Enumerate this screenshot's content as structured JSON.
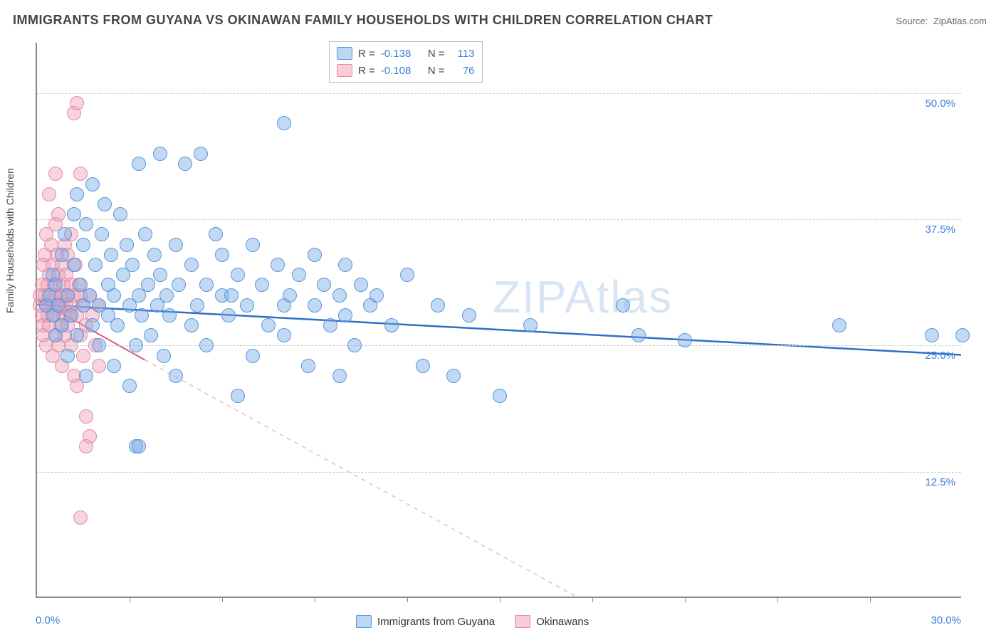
{
  "title": "IMMIGRANTS FROM GUYANA VS OKINAWAN FAMILY HOUSEHOLDS WITH CHILDREN CORRELATION CHART",
  "source_label": "Source:",
  "source_value": "ZipAtlas.com",
  "ylabel": "Family Households with Children",
  "xlim": [
    0,
    30
  ],
  "ylim": [
    0,
    55
  ],
  "x_min_label": "0.0%",
  "x_max_label": "30.0%",
  "y_ticks": [
    {
      "v": 12.5,
      "label": "12.5%"
    },
    {
      "v": 25.0,
      "label": "25.0%"
    },
    {
      "v": 37.5,
      "label": "37.5%"
    },
    {
      "v": 50.0,
      "label": "50.0%"
    }
  ],
  "x_tick_positions": [
    3,
    6,
    9,
    12,
    15,
    18,
    21,
    24,
    27
  ],
  "tick_label_color": "#3b7dd8",
  "grid_color": "#cccccc",
  "axis_color": "#888888",
  "background_color": "#ffffff",
  "watermark": "ZIPAtlas",
  "watermark_color": "rgba(120,160,210,0.25)",
  "legend_top": {
    "rows": [
      {
        "swatch_fill": "#bcd6f3",
        "swatch_border": "#5a95db",
        "r_label": "R =",
        "r_value": "-0.138",
        "n_label": "N =",
        "n_value": "113",
        "value_color": "#3b7dd8"
      },
      {
        "swatch_fill": "#f8cdd8",
        "swatch_border": "#e38ba2",
        "r_label": "R =",
        "r_value": "-0.108",
        "n_label": "N =",
        "n_value": "76",
        "value_color": "#3b7dd8"
      }
    ]
  },
  "legend_bottom": [
    {
      "swatch_fill": "#bcd6f3",
      "swatch_border": "#5a95db",
      "label": "Immigrants from Guyana"
    },
    {
      "swatch_fill": "#f8cdd8",
      "swatch_border": "#e38ba2",
      "label": "Okinawans"
    }
  ],
  "series_blue": {
    "marker_fill": "rgba(120,170,230,0.45)",
    "marker_stroke": "#5a95db",
    "marker_radius": 10,
    "trend": {
      "x1": 0,
      "y1": 29.0,
      "x2": 30,
      "y2": 24.0,
      "color": "#2f6fc7",
      "width": 2.5,
      "dash": "none"
    },
    "points": [
      [
        0.3,
        29
      ],
      [
        0.4,
        30
      ],
      [
        0.5,
        28
      ],
      [
        0.5,
        32
      ],
      [
        0.6,
        26
      ],
      [
        0.6,
        31
      ],
      [
        0.7,
        29
      ],
      [
        0.8,
        34
      ],
      [
        0.8,
        27
      ],
      [
        0.9,
        36
      ],
      [
        1.0,
        30
      ],
      [
        1.0,
        24
      ],
      [
        1.1,
        28
      ],
      [
        1.2,
        33
      ],
      [
        1.2,
        38
      ],
      [
        1.3,
        26
      ],
      [
        1.3,
        40
      ],
      [
        1.4,
        31
      ],
      [
        1.5,
        29
      ],
      [
        1.5,
        35
      ],
      [
        1.6,
        22
      ],
      [
        1.6,
        37
      ],
      [
        1.7,
        30
      ],
      [
        1.8,
        27
      ],
      [
        1.8,
        41
      ],
      [
        1.9,
        33
      ],
      [
        2.0,
        29
      ],
      [
        2.0,
        25
      ],
      [
        2.1,
        36
      ],
      [
        2.2,
        39
      ],
      [
        2.3,
        28
      ],
      [
        2.3,
        31
      ],
      [
        2.4,
        34
      ],
      [
        2.5,
        23
      ],
      [
        2.5,
        30
      ],
      [
        2.6,
        27
      ],
      [
        2.7,
        38
      ],
      [
        2.8,
        32
      ],
      [
        2.9,
        35
      ],
      [
        3.0,
        29
      ],
      [
        3.0,
        21
      ],
      [
        3.1,
        33
      ],
      [
        3.2,
        25
      ],
      [
        3.3,
        43
      ],
      [
        3.3,
        30
      ],
      [
        3.4,
        28
      ],
      [
        3.5,
        36
      ],
      [
        3.6,
        31
      ],
      [
        3.7,
        26
      ],
      [
        3.8,
        34
      ],
      [
        3.9,
        29
      ],
      [
        4.0,
        32
      ],
      [
        4.0,
        44
      ],
      [
        4.1,
        24
      ],
      [
        4.2,
        30
      ],
      [
        4.3,
        28
      ],
      [
        4.5,
        35
      ],
      [
        4.5,
        22
      ],
      [
        4.6,
        31
      ],
      [
        4.8,
        43
      ],
      [
        5.0,
        33
      ],
      [
        5.0,
        27
      ],
      [
        5.2,
        29
      ],
      [
        5.3,
        44
      ],
      [
        5.5,
        31
      ],
      [
        5.5,
        25
      ],
      [
        5.8,
        36
      ],
      [
        6.0,
        30
      ],
      [
        6.0,
        34
      ],
      [
        6.2,
        28
      ],
      [
        6.3,
        30
      ],
      [
        6.5,
        20
      ],
      [
        6.5,
        32
      ],
      [
        6.8,
        29
      ],
      [
        7.0,
        24
      ],
      [
        7.0,
        35
      ],
      [
        7.3,
        31
      ],
      [
        7.5,
        27
      ],
      [
        7.8,
        33
      ],
      [
        8.0,
        29
      ],
      [
        8.0,
        26
      ],
      [
        8.0,
        47
      ],
      [
        8.2,
        30
      ],
      [
        8.5,
        32
      ],
      [
        8.8,
        23
      ],
      [
        9.0,
        34
      ],
      [
        9.0,
        29
      ],
      [
        9.3,
        31
      ],
      [
        9.5,
        27
      ],
      [
        9.8,
        30
      ],
      [
        9.8,
        22
      ],
      [
        10.0,
        33
      ],
      [
        10.0,
        28
      ],
      [
        10.3,
        25
      ],
      [
        10.5,
        31
      ],
      [
        10.8,
        29
      ],
      [
        11.0,
        30
      ],
      [
        11.5,
        27
      ],
      [
        12.0,
        32
      ],
      [
        12.5,
        23
      ],
      [
        13.0,
        29
      ],
      [
        13.5,
        22
      ],
      [
        14.0,
        28
      ],
      [
        15.0,
        20
      ],
      [
        16.0,
        27
      ],
      [
        19.0,
        29
      ],
      [
        19.5,
        26
      ],
      [
        21.0,
        25.5
      ],
      [
        26.0,
        27
      ],
      [
        29.0,
        26
      ],
      [
        30.0,
        26
      ],
      [
        3.2,
        15
      ],
      [
        3.3,
        15
      ]
    ]
  },
  "series_pink": {
    "marker_fill": "rgba(240,160,185,0.45)",
    "marker_stroke": "#e38ba2",
    "marker_radius": 10,
    "trend_solid": {
      "x1": 0,
      "y1": 29.5,
      "x2": 3.5,
      "y2": 23.5,
      "color": "#d85a7c",
      "width": 2,
      "dash": "none"
    },
    "trend_dash": {
      "x1": 3.5,
      "y1": 23.5,
      "x2": 17.5,
      "y2": 0,
      "color": "#f2b8c6",
      "width": 1.5,
      "dash": "6,6"
    },
    "points": [
      [
        0.1,
        29
      ],
      [
        0.1,
        30
      ],
      [
        0.15,
        28
      ],
      [
        0.15,
        31
      ],
      [
        0.2,
        27
      ],
      [
        0.2,
        33
      ],
      [
        0.2,
        26
      ],
      [
        0.25,
        30
      ],
      [
        0.25,
        34
      ],
      [
        0.3,
        29
      ],
      [
        0.3,
        25
      ],
      [
        0.3,
        36
      ],
      [
        0.35,
        31
      ],
      [
        0.35,
        28
      ],
      [
        0.4,
        32
      ],
      [
        0.4,
        27
      ],
      [
        0.4,
        40
      ],
      [
        0.45,
        30
      ],
      [
        0.45,
        35
      ],
      [
        0.5,
        29
      ],
      [
        0.5,
        24
      ],
      [
        0.5,
        33
      ],
      [
        0.55,
        28
      ],
      [
        0.55,
        31
      ],
      [
        0.6,
        37
      ],
      [
        0.6,
        26
      ],
      [
        0.6,
        30
      ],
      [
        0.65,
        34
      ],
      [
        0.65,
        29
      ],
      [
        0.7,
        32
      ],
      [
        0.7,
        25
      ],
      [
        0.7,
        38
      ],
      [
        0.75,
        30
      ],
      [
        0.75,
        27
      ],
      [
        0.8,
        33
      ],
      [
        0.8,
        29
      ],
      [
        0.8,
        23
      ],
      [
        0.85,
        31
      ],
      [
        0.85,
        28
      ],
      [
        0.9,
        35
      ],
      [
        0.9,
        30
      ],
      [
        0.9,
        26
      ],
      [
        0.95,
        32
      ],
      [
        0.95,
        29
      ],
      [
        1.0,
        27
      ],
      [
        1.0,
        34
      ],
      [
        1.0,
        30
      ],
      [
        1.05,
        28
      ],
      [
        1.1,
        31
      ],
      [
        1.1,
        25
      ],
      [
        1.1,
        36
      ],
      [
        1.15,
        29
      ],
      [
        1.2,
        30
      ],
      [
        1.2,
        22
      ],
      [
        1.25,
        33
      ],
      [
        1.3,
        28
      ],
      [
        1.3,
        21
      ],
      [
        1.35,
        31
      ],
      [
        1.4,
        26
      ],
      [
        1.4,
        30
      ],
      [
        1.5,
        24
      ],
      [
        1.5,
        29
      ],
      [
        1.6,
        27
      ],
      [
        1.6,
        18
      ],
      [
        1.7,
        30
      ],
      [
        1.7,
        16
      ],
      [
        1.8,
        28
      ],
      [
        1.9,
        25
      ],
      [
        2.0,
        23
      ],
      [
        2.0,
        29
      ],
      [
        1.2,
        48
      ],
      [
        1.3,
        49
      ],
      [
        1.4,
        42
      ],
      [
        0.6,
        42
      ],
      [
        1.4,
        8
      ],
      [
        1.6,
        15
      ]
    ]
  }
}
